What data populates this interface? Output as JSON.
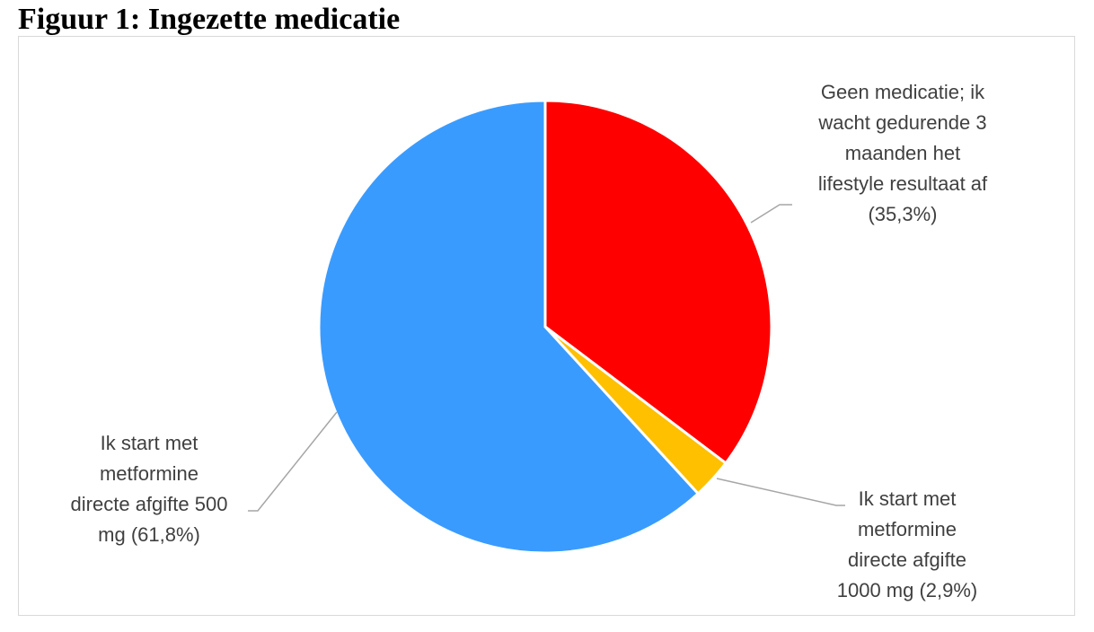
{
  "title": "Figuur 1: Ingezette medicatie",
  "chart_data": {
    "type": "pie",
    "title": "Figuur 1: Ingezette medicatie",
    "categories": [
      "Geen medicatie; ik wacht gedurende 3 maanden het lifestyle resultaat af",
      "Ik start met metformine directe afgifte 1000 mg",
      "Ik start met metformine directe afgifte 500 mg"
    ],
    "values": [
      35.3,
      2.9,
      61.8
    ],
    "colors": [
      "#ff0000",
      "#ffc000",
      "#3a9bff"
    ],
    "labels": [
      [
        "Geen medicatie; ik",
        "wacht gedurende 3",
        "maanden het",
        "lifestyle resultaat af",
        "(35,3%)"
      ],
      [
        "Ik start met",
        "metformine",
        "directe afgifte",
        "1000 mg (2,9%)"
      ],
      [
        "Ik start met",
        "metformine",
        "directe afgifte 500",
        "mg (61,8%)"
      ]
    ],
    "legend": "none (data labels with leader lines)"
  }
}
